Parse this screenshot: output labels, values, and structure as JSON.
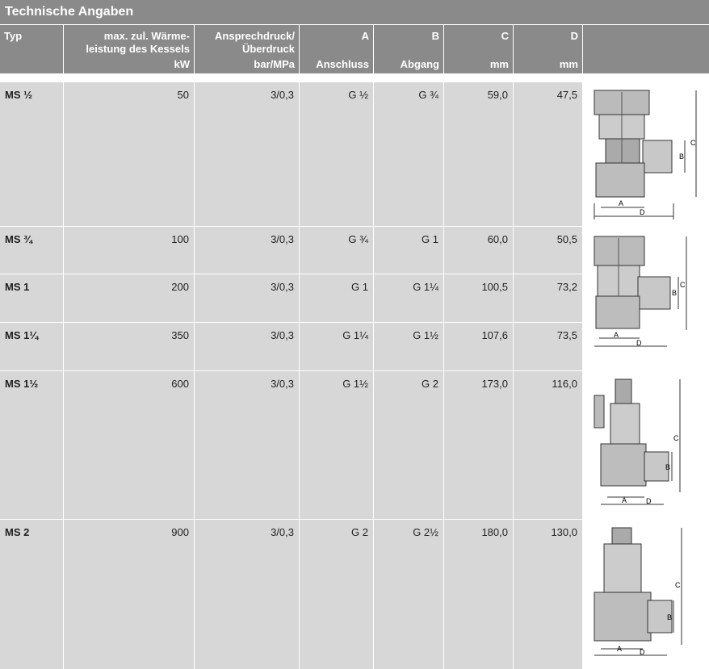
{
  "section_title": "Technische Angaben",
  "headers": {
    "typ": "Typ",
    "leistung": [
      "max. zul. Wärme-",
      "leistung des Kessels",
      "kW"
    ],
    "druck": [
      "Ansprechdruck/",
      "Überdruck",
      "bar/MPa"
    ],
    "a": [
      "A",
      "Anschluss"
    ],
    "b": [
      "B",
      "Abgang"
    ],
    "c": [
      "C",
      "mm"
    ],
    "d": [
      "D",
      "mm"
    ]
  },
  "rows": [
    {
      "typ": "MS ½",
      "kw": "50",
      "druck": "3/0,3",
      "a": "G ½",
      "b": "G ¾",
      "c": "59,0",
      "d": "47,5"
    },
    {
      "typ": "MS ¾",
      "kw": "100",
      "druck": "3/0,3",
      "a": "G ¾",
      "b": "G 1",
      "c": "60,0",
      "d": "50,5"
    },
    {
      "typ": "MS 1",
      "kw": "200",
      "druck": "3/0,3",
      "a": "G 1",
      "b": "G 1¼",
      "c": "100,5",
      "d": "73,2"
    },
    {
      "typ": "MS 1¼",
      "kw": "350",
      "druck": "3/0,3",
      "a": "G 1¼",
      "b": "G 1½",
      "c": "107,6",
      "d": "73,5"
    },
    {
      "typ": "MS 1½",
      "kw": "600",
      "druck": "3/0,3",
      "a": "G 1½",
      "b": "G 2",
      "c": "173,0",
      "d": "116,0"
    },
    {
      "typ": "MS 2",
      "kw": "900",
      "druck": "3/0,3",
      "a": "G 2",
      "b": "G 2½",
      "c": "180,0",
      "d": "130,0"
    }
  ],
  "dimension_labels": {
    "a": "A",
    "b": "B",
    "c": "C",
    "d": "D"
  }
}
